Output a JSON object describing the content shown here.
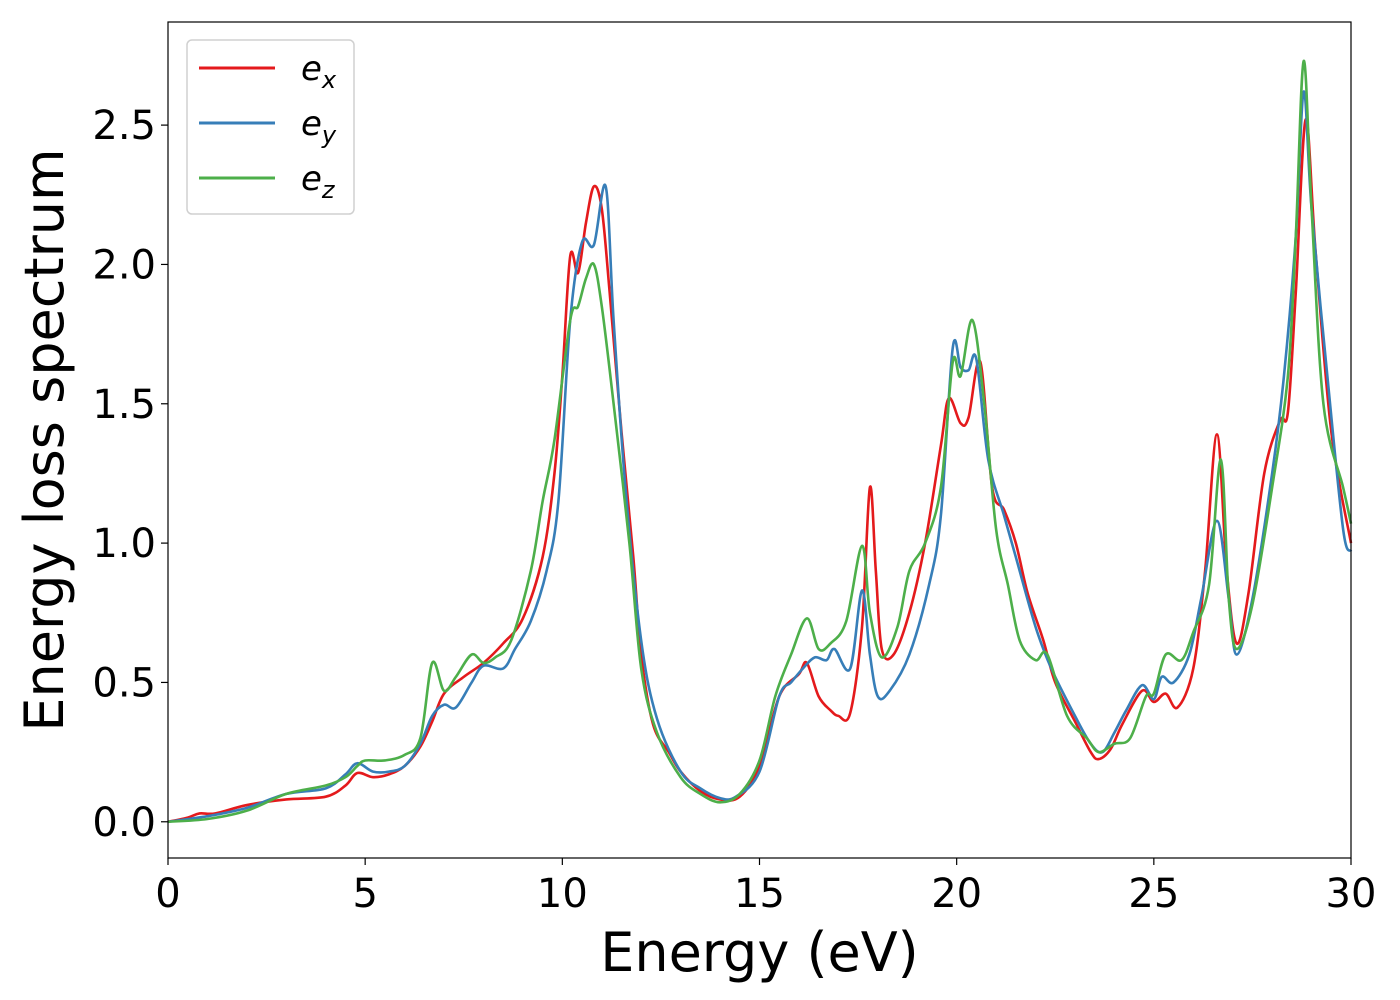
{
  "chart_data": {
    "type": "line",
    "title": "",
    "xlabel": "Energy (eV)",
    "ylabel": "Energy loss spectrum",
    "xlim": [
      0,
      30
    ],
    "ylim": [
      -0.13,
      2.87
    ],
    "xticks": [
      0,
      5,
      10,
      15,
      20,
      25,
      30
    ],
    "xtick_labels": [
      "0",
      "5",
      "10",
      "15",
      "20",
      "25",
      "30"
    ],
    "yticks": [
      0.0,
      0.5,
      1.0,
      1.5,
      2.0,
      2.5
    ],
    "ytick_labels": [
      "0.0",
      "0.5",
      "1.0",
      "1.5",
      "2.0",
      "2.5"
    ],
    "grid": false,
    "legend_position": "top-left",
    "series": [
      {
        "name": "e_x",
        "legend_base": "e",
        "legend_sub": "x",
        "color": "#e41a1c",
        "points": [
          [
            0,
            0
          ],
          [
            0.5,
            0.015
          ],
          [
            0.8,
            0.03
          ],
          [
            1.2,
            0.03
          ],
          [
            2,
            0.06
          ],
          [
            3,
            0.08
          ],
          [
            4,
            0.09
          ],
          [
            4.5,
            0.13
          ],
          [
            4.8,
            0.175
          ],
          [
            5.2,
            0.16
          ],
          [
            5.6,
            0.17
          ],
          [
            6,
            0.2
          ],
          [
            6.4,
            0.27
          ],
          [
            6.7,
            0.36
          ],
          [
            7,
            0.46
          ],
          [
            7.5,
            0.52
          ],
          [
            8,
            0.57
          ],
          [
            8.5,
            0.64
          ],
          [
            9,
            0.73
          ],
          [
            9.5,
            0.95
          ],
          [
            9.8,
            1.25
          ],
          [
            10,
            1.6
          ],
          [
            10.2,
            2.03
          ],
          [
            10.4,
            1.97
          ],
          [
            10.6,
            2.15
          ],
          [
            10.8,
            2.28
          ],
          [
            11,
            2.2
          ],
          [
            11.2,
            1.9
          ],
          [
            11.5,
            1.4
          ],
          [
            11.8,
            0.95
          ],
          [
            12,
            0.6
          ],
          [
            12.3,
            0.35
          ],
          [
            12.7,
            0.25
          ],
          [
            13,
            0.18
          ],
          [
            13.5,
            0.11
          ],
          [
            14,
            0.08
          ],
          [
            14.5,
            0.09
          ],
          [
            15,
            0.2
          ],
          [
            15.5,
            0.45
          ],
          [
            16,
            0.53
          ],
          [
            16.2,
            0.57
          ],
          [
            16.5,
            0.45
          ],
          [
            16.8,
            0.4
          ],
          [
            17,
            0.38
          ],
          [
            17.3,
            0.39
          ],
          [
            17.6,
            0.7
          ],
          [
            17.8,
            1.2
          ],
          [
            17.95,
            0.9
          ],
          [
            18.1,
            0.62
          ],
          [
            18.4,
            0.6
          ],
          [
            18.8,
            0.75
          ],
          [
            19.2,
            1.0
          ],
          [
            19.6,
            1.35
          ],
          [
            19.8,
            1.52
          ],
          [
            20.1,
            1.43
          ],
          [
            20.3,
            1.45
          ],
          [
            20.6,
            1.65
          ],
          [
            20.9,
            1.2
          ],
          [
            21.2,
            1.12
          ],
          [
            21.5,
            1.0
          ],
          [
            21.8,
            0.82
          ],
          [
            22.2,
            0.65
          ],
          [
            22.5,
            0.5
          ],
          [
            23,
            0.36
          ],
          [
            23.4,
            0.25
          ],
          [
            23.6,
            0.225
          ],
          [
            23.9,
            0.26
          ],
          [
            24.2,
            0.35
          ],
          [
            24.7,
            0.47
          ],
          [
            25,
            0.43
          ],
          [
            25.3,
            0.46
          ],
          [
            25.6,
            0.41
          ],
          [
            26,
            0.55
          ],
          [
            26.3,
            0.9
          ],
          [
            26.6,
            1.39
          ],
          [
            26.85,
            0.9
          ],
          [
            27.1,
            0.64
          ],
          [
            27.4,
            0.82
          ],
          [
            27.8,
            1.25
          ],
          [
            28.2,
            1.44
          ],
          [
            28.4,
            1.47
          ],
          [
            28.6,
            1.9
          ],
          [
            28.85,
            2.52
          ],
          [
            29.1,
            2.05
          ],
          [
            29.5,
            1.4
          ],
          [
            30,
            1.0
          ]
        ]
      },
      {
        "name": "e_y",
        "legend_base": "e",
        "legend_sub": "y",
        "color": "#377eb8",
        "points": [
          [
            0,
            0
          ],
          [
            1,
            0.02
          ],
          [
            2,
            0.05
          ],
          [
            3,
            0.1
          ],
          [
            4,
            0.12
          ],
          [
            4.5,
            0.17
          ],
          [
            4.8,
            0.21
          ],
          [
            5.2,
            0.18
          ],
          [
            5.6,
            0.18
          ],
          [
            6,
            0.2
          ],
          [
            6.4,
            0.28
          ],
          [
            6.7,
            0.38
          ],
          [
            7,
            0.42
          ],
          [
            7.3,
            0.41
          ],
          [
            7.7,
            0.5
          ],
          [
            8,
            0.56
          ],
          [
            8.5,
            0.55
          ],
          [
            8.8,
            0.62
          ],
          [
            9.2,
            0.72
          ],
          [
            9.6,
            0.9
          ],
          [
            9.9,
            1.15
          ],
          [
            10.2,
            1.8
          ],
          [
            10.5,
            2.08
          ],
          [
            10.8,
            2.07
          ],
          [
            11.1,
            2.28
          ],
          [
            11.3,
            1.8
          ],
          [
            11.6,
            1.2
          ],
          [
            12,
            0.65
          ],
          [
            12.4,
            0.37
          ],
          [
            13,
            0.18
          ],
          [
            13.5,
            0.12
          ],
          [
            14,
            0.085
          ],
          [
            14.4,
            0.09
          ],
          [
            15,
            0.18
          ],
          [
            15.5,
            0.45
          ],
          [
            15.8,
            0.5
          ],
          [
            16.1,
            0.55
          ],
          [
            16.4,
            0.59
          ],
          [
            16.7,
            0.58
          ],
          [
            16.9,
            0.62
          ],
          [
            17.3,
            0.55
          ],
          [
            17.6,
            0.83
          ],
          [
            17.8,
            0.6
          ],
          [
            18,
            0.45
          ],
          [
            18.3,
            0.47
          ],
          [
            18.8,
            0.6
          ],
          [
            19.3,
            0.85
          ],
          [
            19.6,
            1.1
          ],
          [
            19.9,
            1.7
          ],
          [
            20.1,
            1.63
          ],
          [
            20.3,
            1.62
          ],
          [
            20.5,
            1.66
          ],
          [
            20.8,
            1.3
          ],
          [
            21.2,
            1.1
          ],
          [
            21.5,
            0.95
          ],
          [
            22,
            0.7
          ],
          [
            22.4,
            0.55
          ],
          [
            23,
            0.38
          ],
          [
            23.4,
            0.28
          ],
          [
            23.7,
            0.25
          ],
          [
            24,
            0.32
          ],
          [
            24.3,
            0.4
          ],
          [
            24.7,
            0.49
          ],
          [
            25,
            0.44
          ],
          [
            25.2,
            0.52
          ],
          [
            25.5,
            0.5
          ],
          [
            25.9,
            0.6
          ],
          [
            26.2,
            0.8
          ],
          [
            26.6,
            1.08
          ],
          [
            26.9,
            0.8
          ],
          [
            27.1,
            0.6
          ],
          [
            27.5,
            0.8
          ],
          [
            28,
            1.25
          ],
          [
            28.3,
            1.6
          ],
          [
            28.6,
            2.1
          ],
          [
            28.8,
            2.62
          ],
          [
            29,
            2.2
          ],
          [
            29.4,
            1.6
          ],
          [
            29.8,
            1.05
          ],
          [
            30,
            0.97
          ]
        ]
      },
      {
        "name": "e_z",
        "legend_base": "e",
        "legend_sub": "z",
        "color": "#4daf4a",
        "points": [
          [
            0,
            0
          ],
          [
            1,
            0.01
          ],
          [
            2,
            0.04
          ],
          [
            3,
            0.1
          ],
          [
            4,
            0.13
          ],
          [
            4.5,
            0.16
          ],
          [
            4.8,
            0.2
          ],
          [
            5,
            0.22
          ],
          [
            5.5,
            0.22
          ],
          [
            6,
            0.24
          ],
          [
            6.4,
            0.3
          ],
          [
            6.7,
            0.57
          ],
          [
            7,
            0.47
          ],
          [
            7.3,
            0.52
          ],
          [
            7.7,
            0.6
          ],
          [
            8,
            0.57
          ],
          [
            8.3,
            0.59
          ],
          [
            8.7,
            0.65
          ],
          [
            9.2,
            0.9
          ],
          [
            9.5,
            1.15
          ],
          [
            9.8,
            1.37
          ],
          [
            10.2,
            1.8
          ],
          [
            10.4,
            1.85
          ],
          [
            10.6,
            1.95
          ],
          [
            10.8,
            2.0
          ],
          [
            11,
            1.85
          ],
          [
            11.3,
            1.5
          ],
          [
            11.7,
            1.0
          ],
          [
            12,
            0.55
          ],
          [
            12.4,
            0.32
          ],
          [
            13,
            0.16
          ],
          [
            13.5,
            0.1
          ],
          [
            14,
            0.07
          ],
          [
            14.5,
            0.1
          ],
          [
            15,
            0.22
          ],
          [
            15.4,
            0.45
          ],
          [
            15.8,
            0.6
          ],
          [
            16.2,
            0.73
          ],
          [
            16.5,
            0.62
          ],
          [
            16.8,
            0.64
          ],
          [
            17.2,
            0.72
          ],
          [
            17.6,
            0.99
          ],
          [
            17.8,
            0.75
          ],
          [
            18.1,
            0.59
          ],
          [
            18.5,
            0.7
          ],
          [
            18.8,
            0.9
          ],
          [
            19.2,
            1.0
          ],
          [
            19.6,
            1.2
          ],
          [
            19.9,
            1.65
          ],
          [
            20.1,
            1.6
          ],
          [
            20.4,
            1.8
          ],
          [
            20.7,
            1.5
          ],
          [
            21,
            1.05
          ],
          [
            21.3,
            0.85
          ],
          [
            21.6,
            0.65
          ],
          [
            22,
            0.58
          ],
          [
            22.3,
            0.6
          ],
          [
            22.8,
            0.38
          ],
          [
            23.3,
            0.3
          ],
          [
            23.6,
            0.25
          ],
          [
            24,
            0.28
          ],
          [
            24.4,
            0.3
          ],
          [
            24.8,
            0.45
          ],
          [
            25,
            0.46
          ],
          [
            25.3,
            0.6
          ],
          [
            25.7,
            0.58
          ],
          [
            26,
            0.68
          ],
          [
            26.4,
            0.85
          ],
          [
            26.7,
            1.3
          ],
          [
            26.9,
            0.8
          ],
          [
            27.1,
            0.62
          ],
          [
            27.5,
            0.78
          ],
          [
            28,
            1.2
          ],
          [
            28.4,
            1.6
          ],
          [
            28.6,
            2.1
          ],
          [
            28.8,
            2.73
          ],
          [
            29,
            2.2
          ],
          [
            29.3,
            1.5
          ],
          [
            29.8,
            1.2
          ],
          [
            30,
            1.07
          ]
        ]
      }
    ]
  }
}
